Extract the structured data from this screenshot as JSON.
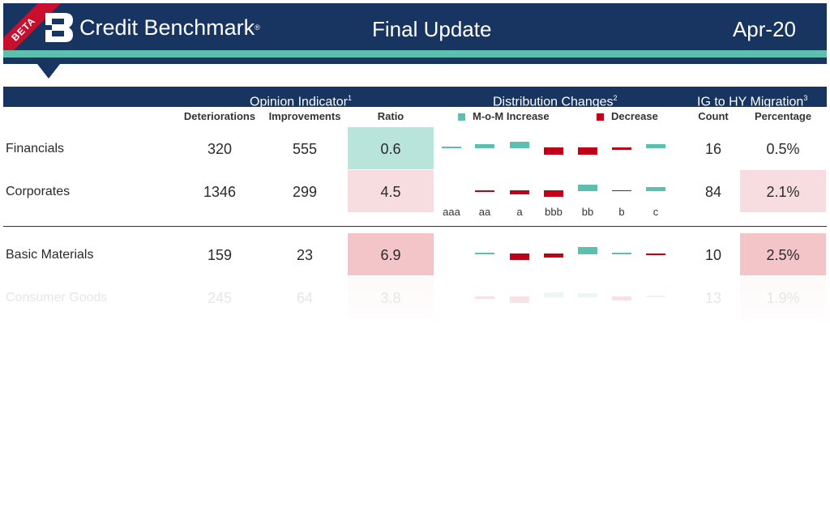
{
  "header": {
    "beta": "BETA",
    "brand": "Credit Benchmark",
    "registered": "®",
    "title": "Final Update",
    "date": "Apr-20"
  },
  "groups": {
    "opinion": "Opinion Indicator",
    "opinion_note": "1",
    "distribution": "Distribution Changes",
    "distribution_note": "2",
    "migration": "IG to HY Migration",
    "migration_note": "3"
  },
  "columns": {
    "deteriorations": "Deteriorations",
    "improvements": "Improvements",
    "ratio": "Ratio",
    "increase": "M-o-M Increase",
    "decrease": "Decrease",
    "count": "Count",
    "percentage": "Percentage"
  },
  "colors": {
    "navy": "#173560",
    "teal": "#5dbfae",
    "red": "#c00018",
    "cell_teal": "#b9e4dc",
    "cell_pink_light": "#f8dde0",
    "cell_pink": "#f3c4c8"
  },
  "grades": [
    "aaa",
    "aa",
    "a",
    "bbb",
    "bb",
    "b",
    "c"
  ],
  "rows": [
    {
      "name": "Financials",
      "deteriorations": "320",
      "improvements": "555",
      "ratio": "0.6",
      "count": "16",
      "percentage": "0.5%",
      "changes": [
        0.3,
        1,
        1.5,
        -1.8,
        -1.8,
        -0.6,
        1
      ]
    },
    {
      "name": "Corporates",
      "deteriorations": "1346",
      "improvements": "299",
      "ratio": "4.5",
      "count": "84",
      "percentage": "2.1%",
      "changes": [
        0,
        -0.4,
        -0.9,
        -1.6,
        1.5,
        -0.2,
        1
      ]
    },
    {
      "name": "Basic Materials",
      "deteriorations": "159",
      "improvements": "23",
      "ratio": "6.9",
      "count": "10",
      "percentage": "2.5%",
      "changes": [
        0,
        0.3,
        -1.5,
        -0.9,
        1.8,
        0.4,
        -0.4
      ]
    },
    {
      "name": "Consumer Goods",
      "deteriorations": "245",
      "improvements": "64",
      "ratio": "3.8",
      "count": "13",
      "percentage": "1.9%",
      "changes": [
        0,
        -0.6,
        -1.6,
        1.2,
        0.9,
        -0.9,
        0.3
      ]
    }
  ]
}
